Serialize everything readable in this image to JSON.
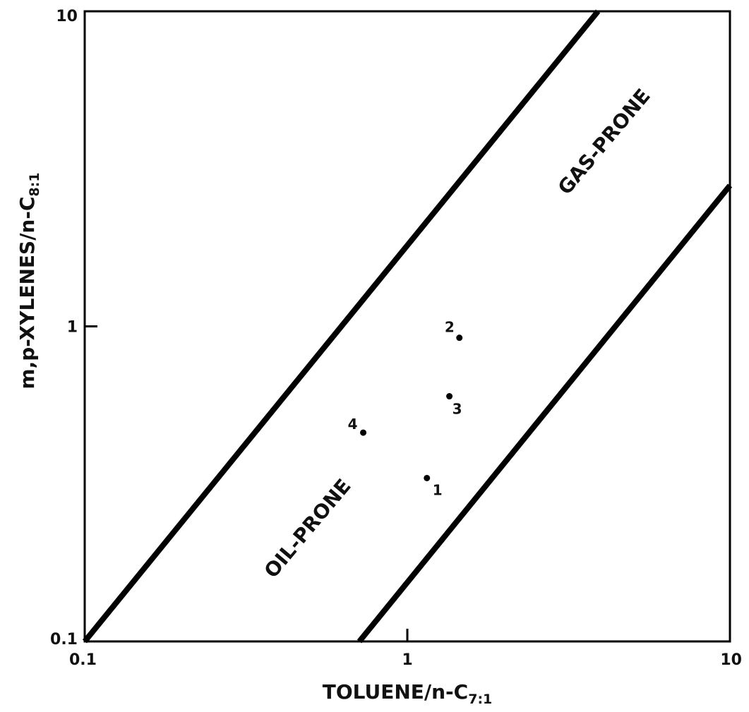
{
  "chart_data": {
    "type": "scatter",
    "x_scale": "log",
    "y_scale": "log",
    "xlim": [
      0.1,
      10
    ],
    "ylim": [
      0.1,
      10
    ],
    "x_ticks": [
      {
        "value": 0.1,
        "label": "0.1"
      },
      {
        "value": 1,
        "label": "1"
      },
      {
        "value": 10,
        "label": "10"
      }
    ],
    "y_ticks": [
      {
        "value": 0.1,
        "label": "0.1"
      },
      {
        "value": 1,
        "label": "1"
      },
      {
        "value": 10,
        "label": "10"
      }
    ],
    "xlabel": {
      "main": "TOLUENE/n-C",
      "sub": "7:1"
    },
    "ylabel": {
      "main": "m,p-XYLENES/n-C",
      "sub": "8:1"
    },
    "grid": false,
    "boundary_lines": [
      {
        "points": [
          [
            0.1,
            0.1
          ],
          [
            3.9,
            10
          ]
        ]
      },
      {
        "points": [
          [
            0.71,
            0.1
          ],
          [
            10,
            2.8
          ]
        ]
      }
    ],
    "regions": [
      {
        "label": "OIL-PRONE"
      },
      {
        "label": "GAS-PRONE"
      }
    ],
    "points": [
      {
        "label": "1",
        "x": 1.15,
        "y": 0.33
      },
      {
        "label": "2",
        "x": 1.45,
        "y": 0.92
      },
      {
        "label": "3",
        "x": 1.35,
        "y": 0.6
      },
      {
        "label": "4",
        "x": 0.73,
        "y": 0.46
      }
    ],
    "line_color": "#000000",
    "point_color": "#000000"
  }
}
